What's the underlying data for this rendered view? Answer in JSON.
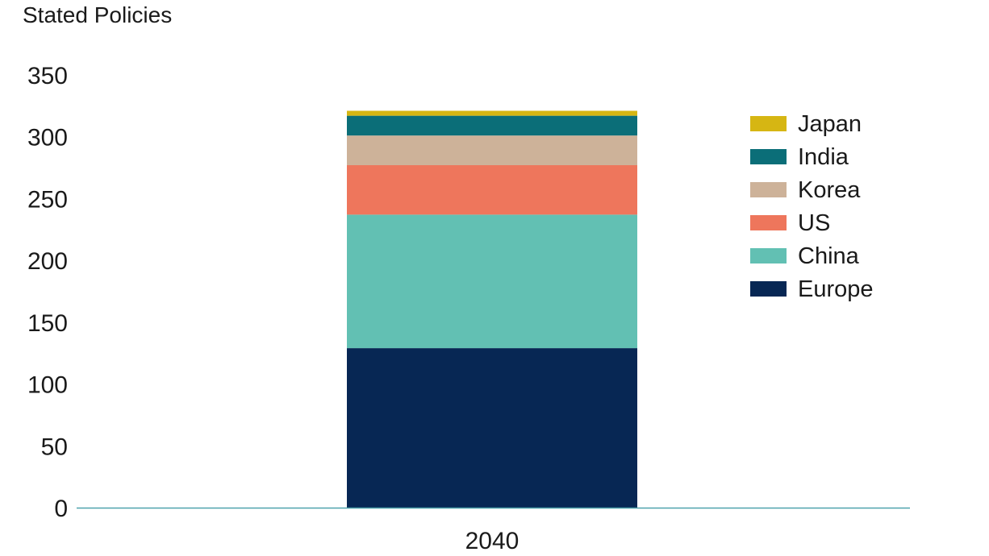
{
  "chart_data": {
    "type": "bar",
    "stacked": true,
    "title": "Stated Policies",
    "xlabel": "",
    "ylabel": "",
    "categories": [
      "2040"
    ],
    "ylim": [
      0,
      350
    ],
    "yticks": [
      0,
      50,
      100,
      150,
      200,
      250,
      300,
      350
    ],
    "grid": false,
    "legend_position": "right",
    "series": [
      {
        "name": "Europe",
        "values": [
          129
        ],
        "color": "#072754"
      },
      {
        "name": "China",
        "values": [
          108
        ],
        "color": "#62c0b3"
      },
      {
        "name": "US",
        "values": [
          40
        ],
        "color": "#ee765c"
      },
      {
        "name": "Korea",
        "values": [
          24
        ],
        "color": "#cdb299"
      },
      {
        "name": "India",
        "values": [
          16
        ],
        "color": "#0b6e78"
      },
      {
        "name": "Japan",
        "values": [
          4
        ],
        "color": "#d6b613"
      }
    ],
    "legend_order": [
      "Japan",
      "India",
      "Korea",
      "US",
      "China",
      "Europe"
    ],
    "axis_color": "#4fa3ad"
  }
}
